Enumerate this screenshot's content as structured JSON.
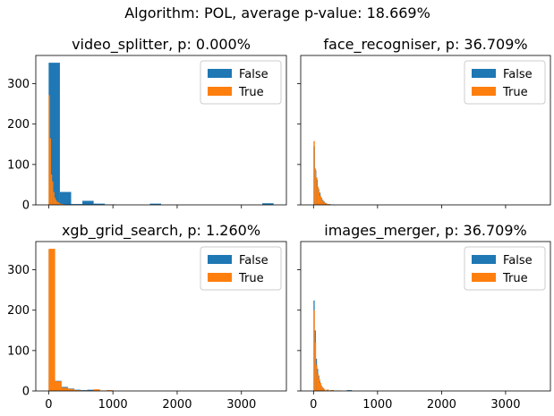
{
  "figure": {
    "suptitle": "Algorithm: POL, average p-value: 18.669%"
  },
  "colors": {
    "false_series": "#1f77b4",
    "true_series": "#ff7f0e"
  },
  "chart_data": [
    {
      "type": "bar",
      "title": "video_splitter, p: 0.000%",
      "xlim": [
        -200,
        3700
      ],
      "ylim": [
        0,
        370
      ],
      "xticks": [
        0,
        1000,
        2000,
        3000
      ],
      "xtick_labels_visible": false,
      "yticks": [
        0,
        100,
        200,
        300
      ],
      "ytick_labels": [
        "0",
        "100",
        "200",
        "300"
      ],
      "legend": {
        "position": "top-right",
        "entries": [
          "False",
          "True"
        ]
      },
      "series": [
        {
          "name": "False",
          "bins": [
            [
              0,
              175,
              352
            ],
            [
              175,
              350,
              32
            ],
            [
              350,
              525,
              2
            ],
            [
              525,
              700,
              10
            ],
            [
              700,
              875,
              3
            ],
            [
              875,
              1050,
              1
            ],
            [
              1575,
              1750,
              3
            ],
            [
              3325,
              3500,
              4
            ]
          ]
        },
        {
          "name": "True",
          "bins": [
            [
              0,
              18,
              272
            ],
            [
              18,
              36,
              165
            ],
            [
              36,
              54,
              75
            ],
            [
              54,
              72,
              58
            ],
            [
              72,
              90,
              32
            ],
            [
              90,
              108,
              18
            ],
            [
              108,
              126,
              12
            ],
            [
              126,
              144,
              8
            ],
            [
              144,
              162,
              6
            ],
            [
              162,
              180,
              4
            ],
            [
              180,
              198,
              3
            ],
            [
              198,
              216,
              2
            ],
            [
              216,
              234,
              2
            ],
            [
              234,
              252,
              1
            ],
            [
              252,
              270,
              1
            ]
          ]
        }
      ]
    },
    {
      "type": "bar",
      "title": "face_recogniser, p: 36.709%",
      "xlim": [
        -200,
        3700
      ],
      "ylim": [
        0,
        370
      ],
      "xticks": [
        0,
        1000,
        2000,
        3000
      ],
      "xtick_labels_visible": false,
      "yticks": [
        0,
        100,
        200,
        300
      ],
      "ytick_labels_visible": false,
      "legend": {
        "position": "top-right",
        "entries": [
          "False",
          "True"
        ]
      },
      "series": [
        {
          "name": "False",
          "bins": [
            [
              0,
              22,
              145
            ],
            [
              22,
              44,
              85
            ],
            [
              44,
              66,
              62
            ],
            [
              66,
              88,
              40
            ],
            [
              88,
              110,
              30
            ],
            [
              110,
              132,
              18
            ],
            [
              132,
              154,
              12
            ],
            [
              154,
              176,
              8
            ],
            [
              176,
              198,
              5
            ],
            [
              198,
              220,
              3
            ],
            [
              220,
              242,
              2
            ],
            [
              242,
              264,
              2
            ],
            [
              264,
              286,
              1
            ],
            [
              286,
              308,
              1
            ],
            [
              308,
              330,
              1
            ]
          ]
        },
        {
          "name": "True",
          "bins": [
            [
              0,
              20,
              158
            ],
            [
              20,
              40,
              90
            ],
            [
              40,
              60,
              68
            ],
            [
              60,
              80,
              45
            ],
            [
              80,
              100,
              32
            ],
            [
              100,
              120,
              22
            ],
            [
              120,
              140,
              15
            ],
            [
              140,
              160,
              10
            ],
            [
              160,
              180,
              6
            ],
            [
              180,
              200,
              4
            ],
            [
              200,
              220,
              3
            ],
            [
              220,
              240,
              2
            ],
            [
              240,
              260,
              2
            ],
            [
              260,
              280,
              1
            ]
          ]
        }
      ]
    },
    {
      "type": "bar",
      "title": "xgb_grid_search, p: 1.260%",
      "xlim": [
        -200,
        3700
      ],
      "ylim": [
        0,
        370
      ],
      "xticks": [
        0,
        1000,
        2000,
        3000
      ],
      "xtick_labels": [
        "0",
        "1000",
        "2000",
        "3000"
      ],
      "yticks": [
        0,
        100,
        200,
        300
      ],
      "ytick_labels": [
        "0",
        "100",
        "200",
        "300"
      ],
      "legend": {
        "position": "top-right",
        "entries": [
          "False",
          "True"
        ]
      },
      "series": [
        {
          "name": "False",
          "bins": [
            [
              0,
              100,
              350
            ],
            [
              100,
              200,
              25
            ],
            [
              200,
              300,
              10
            ],
            [
              300,
              400,
              6
            ],
            [
              400,
              500,
              3
            ],
            [
              500,
              600,
              2
            ],
            [
              600,
              700,
              3
            ],
            [
              700,
              800,
              1
            ],
            [
              900,
              1000,
              1
            ]
          ]
        },
        {
          "name": "True",
          "bins": [
            [
              0,
              100,
              352
            ],
            [
              100,
              200,
              24
            ],
            [
              200,
              300,
              8
            ],
            [
              300,
              400,
              5
            ],
            [
              400,
              500,
              2
            ],
            [
              500,
              600,
              1
            ],
            [
              600,
              700,
              1
            ],
            [
              700,
              800,
              4
            ],
            [
              800,
              900,
              1
            ],
            [
              900,
              1000,
              2
            ]
          ]
        }
      ]
    },
    {
      "type": "bar",
      "title": "images_merger, p: 36.709%",
      "xlim": [
        -200,
        3700
      ],
      "ylim": [
        0,
        370
      ],
      "xticks": [
        0,
        1000,
        2000,
        3000
      ],
      "xtick_labels": [
        "0",
        "1000",
        "2000",
        "3000"
      ],
      "yticks": [
        0,
        100,
        200,
        300
      ],
      "ytick_labels_visible": false,
      "legend": {
        "position": "top-right",
        "entries": [
          "False",
          "True"
        ]
      },
      "series": [
        {
          "name": "False",
          "bins": [
            [
              0,
              18,
              224
            ],
            [
              18,
              36,
              150
            ],
            [
              36,
              54,
              80
            ],
            [
              54,
              72,
              55
            ],
            [
              72,
              90,
              38
            ],
            [
              90,
              108,
              25
            ],
            [
              108,
              126,
              15
            ],
            [
              126,
              144,
              10
            ],
            [
              144,
              162,
              6
            ],
            [
              162,
              180,
              4
            ],
            [
              200,
              240,
              3
            ],
            [
              260,
              320,
              2
            ],
            [
              350,
              420,
              1
            ],
            [
              520,
              600,
              2
            ]
          ]
        },
        {
          "name": "True",
          "bins": [
            [
              0,
              20,
              200
            ],
            [
              20,
              40,
              120
            ],
            [
              40,
              60,
              65
            ],
            [
              60,
              80,
              42
            ],
            [
              80,
              100,
              30
            ],
            [
              100,
              120,
              20
            ],
            [
              120,
              140,
              12
            ],
            [
              140,
              160,
              8
            ],
            [
              160,
              180,
              5
            ],
            [
              200,
              240,
              3
            ],
            [
              260,
              320,
              2
            ],
            [
              340,
              400,
              1
            ]
          ]
        }
      ]
    }
  ]
}
